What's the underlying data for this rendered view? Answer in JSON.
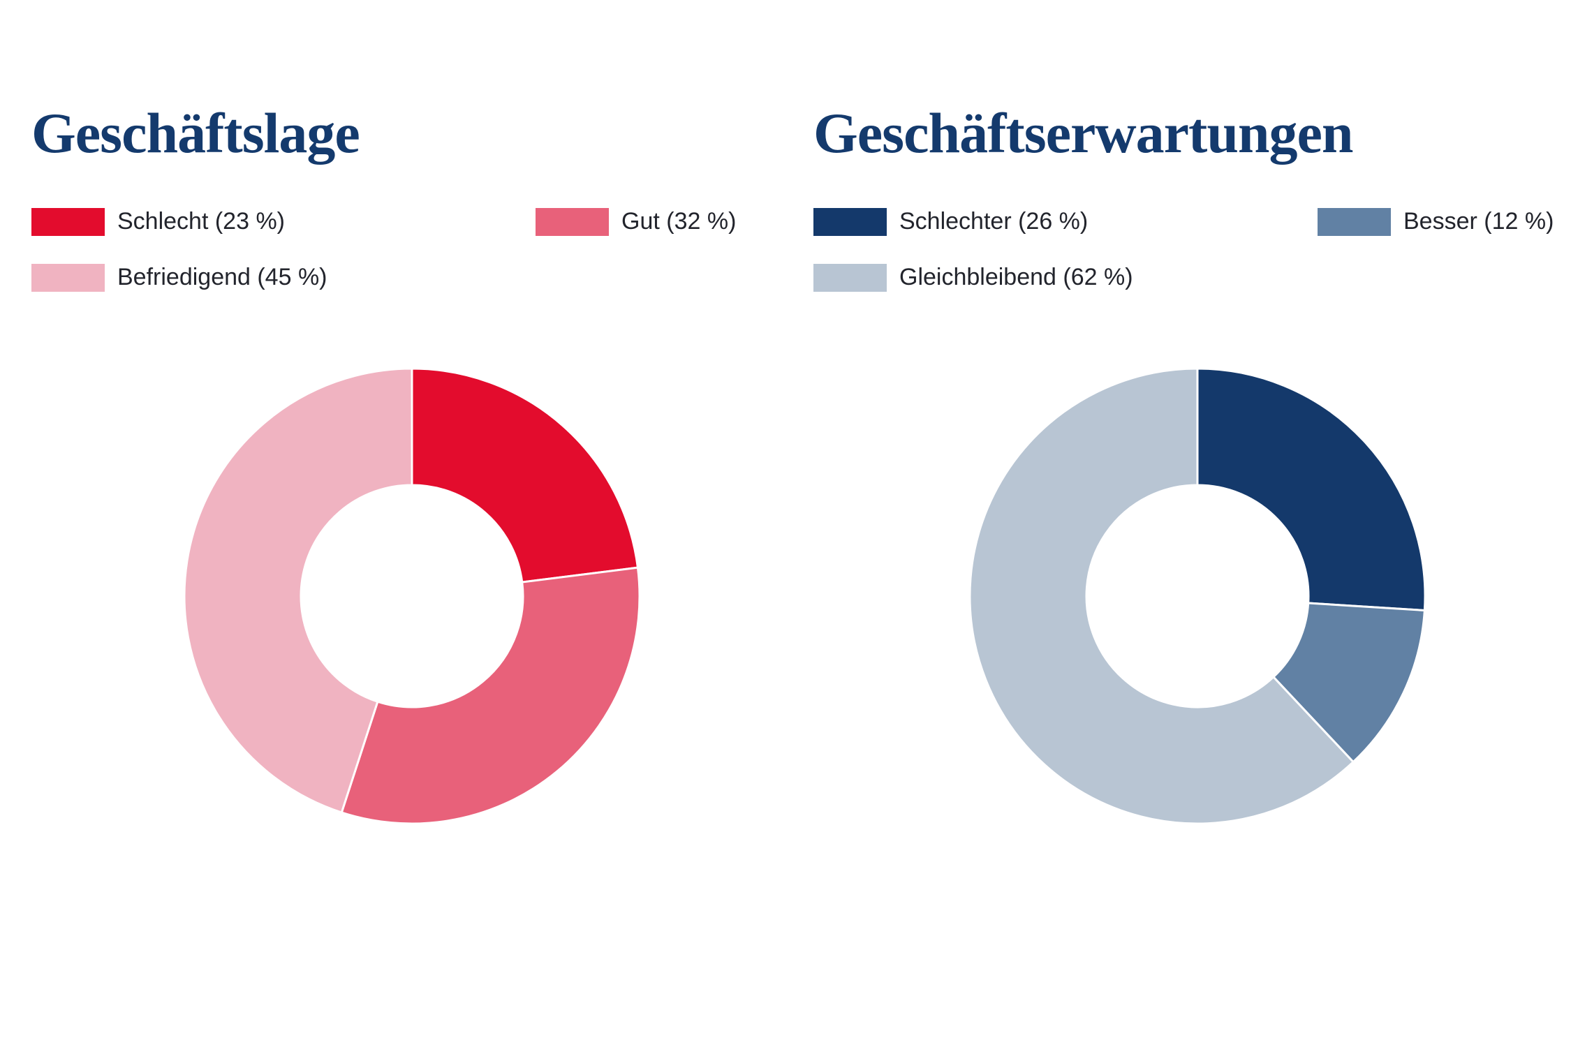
{
  "theme": {
    "background": "#ffffff",
    "title_color": "#143a6d",
    "legend_text_color": "#22242c",
    "separator_color": "#ffffff"
  },
  "chart_data": [
    {
      "type": "pie",
      "subtype": "donut",
      "title": "Geschäftslage",
      "categories": [
        "Schlecht",
        "Gut",
        "Befriedigend"
      ],
      "values": [
        23,
        32,
        45
      ],
      "unit": "%",
      "colors": [
        "#e30c2d",
        "#e8617a",
        "#f0b3c1"
      ],
      "legend_labels": [
        "Schlecht (23 %)",
        "Gut (32 %)",
        "Befriedigend (45 %)"
      ],
      "legend_position": "top",
      "start_angle_deg": 0,
      "direction": "clockwise",
      "inner_radius_ratio": 0.487
    },
    {
      "type": "pie",
      "subtype": "donut",
      "title": "Geschäftserwartungen",
      "categories": [
        "Schlechter",
        "Besser",
        "Gleichbleibend"
      ],
      "values": [
        26,
        12,
        62
      ],
      "unit": "%",
      "colors": [
        "#14396b",
        "#6181a4",
        "#b8c5d3"
      ],
      "legend_labels": [
        "Schlechter (26 %)",
        "Besser (12 %)",
        "Gleichbleibend (62 %)"
      ],
      "legend_position": "top",
      "start_angle_deg": 0,
      "direction": "clockwise",
      "inner_radius_ratio": 0.487
    }
  ]
}
